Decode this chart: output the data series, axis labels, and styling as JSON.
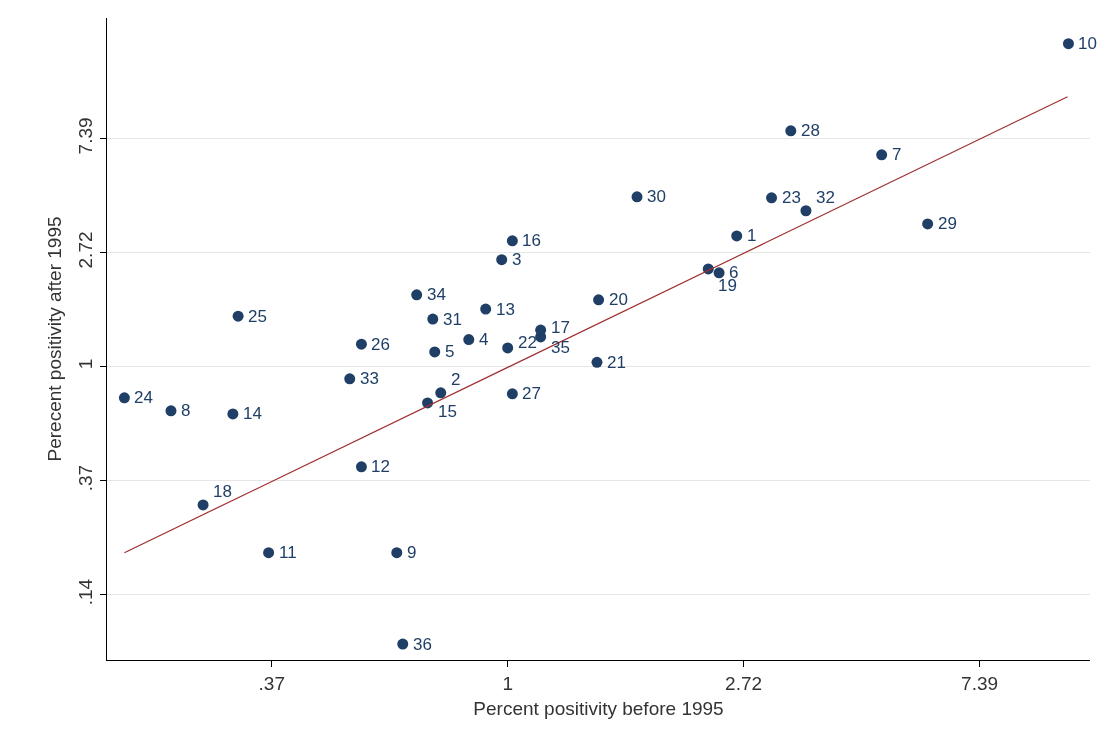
{
  "chart_data": {
    "type": "scatter",
    "xlabel": "Percent positivity before 1995",
    "ylabel": "Perecent positivity after 1995",
    "log": "xy",
    "grid": "y",
    "legend": false,
    "xlim": [
      0.183,
      11.8
    ],
    "ylim": [
      0.0765,
      21.3
    ],
    "xticks": [
      {
        "value": 0.3679,
        "label": ".37"
      },
      1,
      {
        "value": 2.718,
        "label": "2.72"
      },
      {
        "value": 7.389,
        "label": "7.39"
      }
    ],
    "yticks": [
      {
        "value": 0.1353,
        "label": ".14"
      },
      {
        "value": 0.3679,
        "label": ".37"
      },
      1,
      {
        "value": 2.718,
        "label": "2.72"
      },
      {
        "value": 7.389,
        "label": "7.39"
      }
    ],
    "series": [
      {
        "color": "#1f3f66",
        "marker": "circle",
        "x": [
          2.64,
          0.753,
          0.975,
          0.848,
          0.734,
          2.45,
          4.88,
          0.24,
          0.625,
          10.77,
          0.363,
          0.538,
          0.911,
          0.312,
          0.712,
          1.02,
          1.15,
          0.275,
          2.34,
          1.47,
          1.46,
          1.0,
          3.06,
          0.197,
          0.319,
          0.538,
          1.02,
          3.32,
          5.93,
          1.73,
          0.728,
          3.54,
          0.512,
          0.68,
          1.15,
          0.641
        ],
        "values": [
          3.15,
          0.796,
          2.56,
          1.27,
          1.14,
          2.28,
          6.42,
          0.68,
          0.196,
          17.0,
          0.196,
          0.416,
          1.66,
          0.662,
          0.729,
          3.02,
          1.3,
          0.298,
          2.36,
          1.8,
          1.04,
          1.18,
          4.4,
          0.762,
          1.56,
          1.22,
          0.789,
          7.92,
          3.5,
          4.44,
          1.52,
          3.93,
          0.9,
          1.88,
          1.38,
          0.088
        ]
      },
      {
        "type": "line",
        "color": "#a03030",
        "x": [
          0.197,
          10.73
        ],
        "values": [
          0.196,
          10.68
        ]
      }
    ],
    "annotations": [
      {
        "text": "1",
        "x": 2.64,
        "y": 3.15
      },
      {
        "text": "2",
        "x": 0.753,
        "y": 0.796
      },
      {
        "text": "3",
        "x": 0.975,
        "y": 2.56
      },
      {
        "text": "4",
        "x": 0.848,
        "y": 1.27
      },
      {
        "text": "5",
        "x": 0.734,
        "y": 1.14
      },
      {
        "text": "6",
        "x": 2.45,
        "y": 2.28
      },
      {
        "text": "7",
        "x": 4.88,
        "y": 6.42
      },
      {
        "text": "8",
        "x": 0.24,
        "y": 0.68
      },
      {
        "text": "9",
        "x": 0.625,
        "y": 0.196
      },
      {
        "text": "10",
        "x": 10.77,
        "y": 17.0
      },
      {
        "text": "11",
        "x": 0.363,
        "y": 0.196
      },
      {
        "text": "12",
        "x": 0.538,
        "y": 0.416
      },
      {
        "text": "13",
        "x": 0.911,
        "y": 1.66
      },
      {
        "text": "14",
        "x": 0.312,
        "y": 0.662
      },
      {
        "text": "15",
        "x": 0.712,
        "y": 0.729
      },
      {
        "text": "16",
        "x": 1.02,
        "y": 3.02
      },
      {
        "text": "17",
        "x": 1.15,
        "y": 1.3
      },
      {
        "text": "18",
        "x": 0.275,
        "y": 0.298
      },
      {
        "text": "19",
        "x": 2.34,
        "y": 2.36
      },
      {
        "text": "20",
        "x": 1.47,
        "y": 1.8
      },
      {
        "text": "21",
        "x": 1.46,
        "y": 1.04
      },
      {
        "text": "22",
        "x": 1.0,
        "y": 1.18
      },
      {
        "text": "23",
        "x": 3.06,
        "y": 4.4
      },
      {
        "text": "24",
        "x": 0.197,
        "y": 0.762
      },
      {
        "text": "25",
        "x": 0.319,
        "y": 1.56
      },
      {
        "text": "26",
        "x": 0.538,
        "y": 1.22
      },
      {
        "text": "27",
        "x": 1.02,
        "y": 0.789
      },
      {
        "text": "28",
        "x": 3.32,
        "y": 7.92
      },
      {
        "text": "29",
        "x": 5.93,
        "y": 3.5
      },
      {
        "text": "30",
        "x": 1.73,
        "y": 4.44
      },
      {
        "text": "31",
        "x": 0.728,
        "y": 1.52
      },
      {
        "text": "32",
        "x": 3.54,
        "y": 3.93
      },
      {
        "text": "33",
        "x": 0.512,
        "y": 0.9
      },
      {
        "text": "34",
        "x": 0.68,
        "y": 1.88
      },
      {
        "text": "35",
        "x": 1.15,
        "y": 1.38
      },
      {
        "text": "36",
        "x": 0.641,
        "y": 0.088
      }
    ]
  }
}
